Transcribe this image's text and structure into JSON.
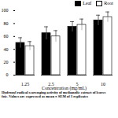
{
  "chart_data": {
    "type": "bar",
    "x_label": "Concentration (mg/mL)",
    "categories": [
      "1.25",
      "2.5",
      "5",
      "10"
    ],
    "series": [
      {
        "name": "Leaf",
        "color": "#000000",
        "values": [
          50,
          65,
          75,
          85
        ],
        "errors": [
          8,
          10,
          8,
          8
        ]
      },
      {
        "name": "Root",
        "color": "#ffffff",
        "values": [
          45,
          60,
          78,
          90
        ],
        "errors": [
          7,
          9,
          9,
          8
        ]
      }
    ],
    "ylim": [
      0,
      100
    ],
    "yticks": [
      0,
      20,
      40,
      60,
      80,
      100
    ],
    "legend": "top-right",
    "caption": [
      "Hydroxyl radical scavenging activity of methanolic extract of leaves",
      "foic. Values are expressed as mean ± SEM of 3 replicates"
    ]
  }
}
